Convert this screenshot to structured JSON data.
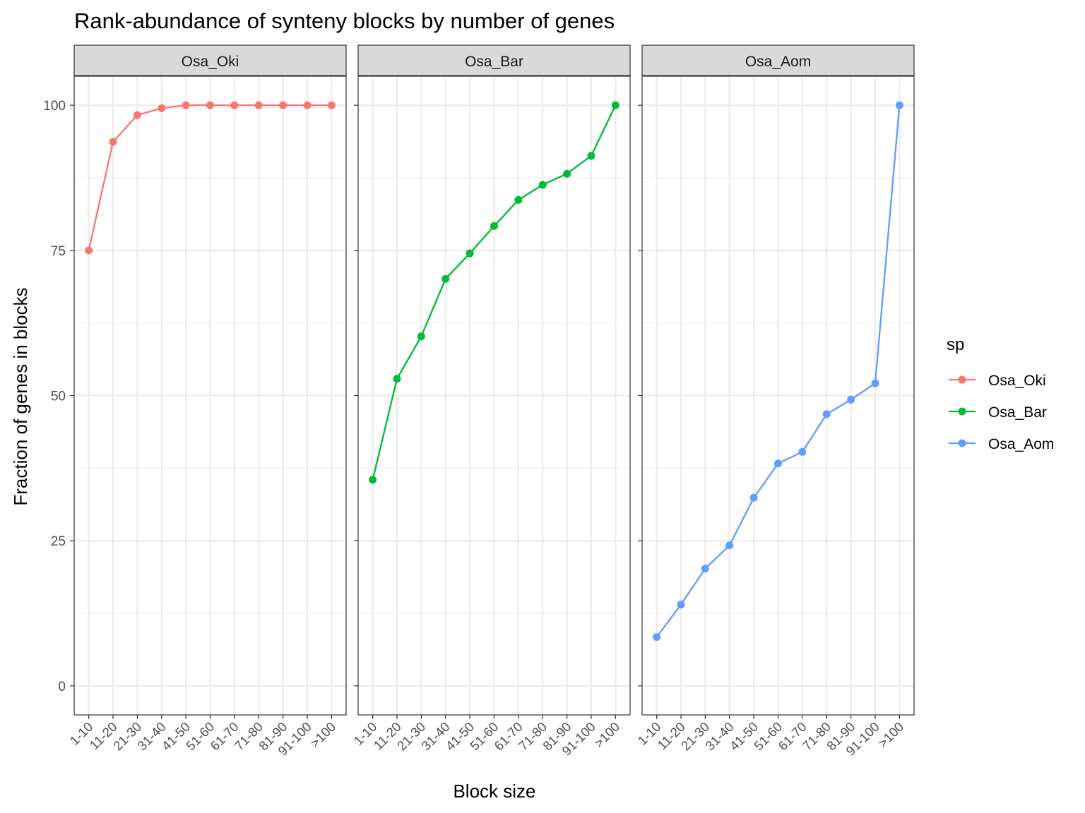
{
  "chart_data": {
    "type": "line",
    "title": "Rank-abundance of synteny blocks by number of genes",
    "xlabel": "Block size",
    "ylabel": "Fraction of genes in blocks",
    "categories": [
      "1-10",
      "11-20",
      "21-30",
      "31-40",
      "41-50",
      "51-60",
      "61-70",
      "71-80",
      "81-90",
      "91-100",
      ">100"
    ],
    "ylim": [
      -5,
      105
    ],
    "yticks": [
      0,
      25,
      50,
      75,
      100
    ],
    "grid": true,
    "legend": {
      "title": "sp",
      "position": "right",
      "entries": [
        "Osa_Oki",
        "Osa_Bar",
        "Osa_Aom"
      ]
    },
    "series": [
      {
        "name": "Osa_Oki",
        "facet": "Osa_Oki",
        "color": "#F8766D",
        "values": [
          75.0,
          93.7,
          98.3,
          99.5,
          100,
          100,
          100,
          100,
          100,
          100,
          100
        ]
      },
      {
        "name": "Osa_Bar",
        "facet": "Osa_Bar",
        "color": "#00BA38",
        "values": [
          35.5,
          52.9,
          60.2,
          70.1,
          74.5,
          79.2,
          83.7,
          86.3,
          88.2,
          91.3,
          100
        ]
      },
      {
        "name": "Osa_Aom",
        "facet": "Osa_Aom",
        "color": "#619CFF",
        "values": [
          8.4,
          14.0,
          20.2,
          24.2,
          32.4,
          38.3,
          40.3,
          46.8,
          49.3,
          52.1,
          100
        ]
      }
    ]
  },
  "colors": {
    "strip_bg": "#D9D9D9",
    "grid": "#EBEBEB",
    "panel_border": "#333333",
    "text": "#000000",
    "tick_text": "#4D4D4D"
  }
}
